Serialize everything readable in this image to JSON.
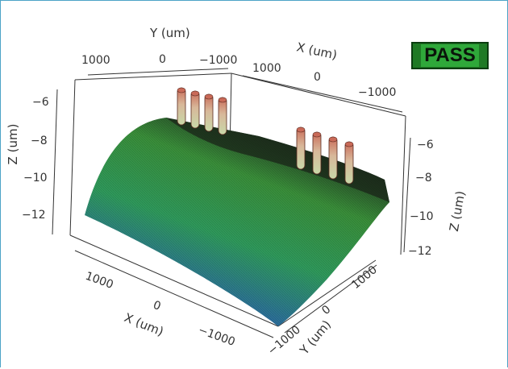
{
  "chart_data": {
    "type": "surface3d",
    "title": "",
    "status": "PASS",
    "status_color": "#2fa83a",
    "axes": {
      "x": {
        "label": "X (um)",
        "ticks": [
          "1000",
          "0",
          "−1000"
        ],
        "range": [
          1000,
          -1000
        ]
      },
      "y": {
        "label": "Y (um)",
        "ticks": [
          "1000",
          "0",
          "−1000"
        ],
        "range": [
          1000,
          -1000
        ]
      },
      "z": {
        "label": "Z (um)",
        "ticks": [
          "−6",
          "−8",
          "−10",
          "−12"
        ],
        "range": [
          -12.5,
          -5.5
        ]
      }
    },
    "surface": {
      "shape": "cylindrical arch",
      "z_peak": -5.8,
      "z_edge": -12,
      "colormap": [
        "#1b2f8a",
        "#2c6f9a",
        "#2f9a5c",
        "#3a8f3a",
        "#1f2f20"
      ]
    },
    "pillars": [
      {
        "group": "upper-left",
        "count": 4
      },
      {
        "group": "right",
        "count": 4
      }
    ],
    "pillar_color": "#c96a58"
  }
}
